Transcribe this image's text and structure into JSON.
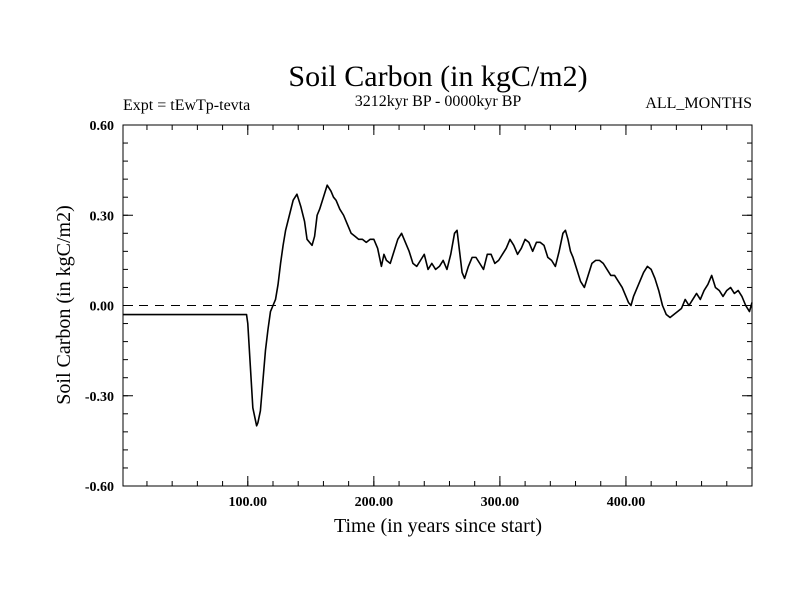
{
  "chart_data": {
    "type": "line",
    "title": "Soil Carbon (in kgC/m2)",
    "subtitle_left": "Expt = tEwTp-tevta",
    "subtitle_center": "3212kyr BP - 0000kyr BP",
    "subtitle_right": "ALL_MONTHS",
    "xlabel": "Time (in years since start)",
    "ylabel": "Soil Carbon (in kgC/m2)",
    "xlim": [
      1,
      500
    ],
    "ylim": [
      -0.6,
      0.6
    ],
    "x_ticks": [
      {
        "value": 100,
        "label": "100.00"
      },
      {
        "value": 200,
        "label": "200.00"
      },
      {
        "value": 300,
        "label": "300.00"
      },
      {
        "value": 400,
        "label": "400.00"
      }
    ],
    "y_ticks": [
      {
        "value": 0.6,
        "label": "0.60"
      },
      {
        "value": 0.3,
        "label": "0.30"
      },
      {
        "value": 0.0,
        "label": "0.00"
      },
      {
        "value": -0.3,
        "label": "-0.30"
      },
      {
        "value": -0.6,
        "label": "-0.60"
      }
    ],
    "reference_line": {
      "value": 0.0,
      "style": "dashed"
    },
    "series": [
      {
        "name": "Soil Carbon",
        "x": [
          1,
          99,
          100,
          102,
          104,
          106,
          107,
          108,
          110,
          112,
          114,
          116,
          118,
          120,
          122,
          124,
          126,
          128,
          130,
          133,
          136,
          139,
          142,
          145,
          147,
          149,
          151,
          153,
          155,
          157,
          160,
          163,
          166,
          168,
          170,
          173,
          176,
          179,
          182,
          185,
          188,
          191,
          194,
          197,
          200,
          203,
          206,
          208,
          210,
          213,
          216,
          219,
          222,
          225,
          228,
          231,
          234,
          237,
          240,
          243,
          246,
          249,
          252,
          255,
          258,
          261,
          264,
          266,
          268,
          270,
          272,
          275,
          278,
          281,
          284,
          287,
          290,
          293,
          296,
          299,
          302,
          305,
          308,
          311,
          314,
          317,
          320,
          323,
          326,
          329,
          332,
          335,
          338,
          341,
          344,
          347,
          350,
          352,
          354,
          356,
          358,
          361,
          364,
          367,
          370,
          373,
          376,
          379,
          382,
          385,
          388,
          391,
          394,
          397,
          400,
          402,
          404,
          406,
          408,
          411,
          414,
          417,
          420,
          423,
          426,
          429,
          432,
          435,
          438,
          441,
          444,
          447,
          450,
          453,
          456,
          459,
          462,
          465,
          468,
          471,
          474,
          477,
          480,
          483,
          486,
          489,
          492,
          495,
          498,
          500
        ],
        "values": [
          -0.03,
          -0.03,
          -0.06,
          -0.2,
          -0.34,
          -0.38,
          -0.4,
          -0.39,
          -0.35,
          -0.25,
          -0.15,
          -0.08,
          -0.02,
          0.0,
          0.02,
          0.07,
          0.14,
          0.2,
          0.25,
          0.3,
          0.35,
          0.37,
          0.33,
          0.28,
          0.22,
          0.21,
          0.2,
          0.23,
          0.3,
          0.32,
          0.36,
          0.4,
          0.38,
          0.36,
          0.35,
          0.32,
          0.3,
          0.27,
          0.24,
          0.23,
          0.22,
          0.22,
          0.21,
          0.22,
          0.22,
          0.19,
          0.13,
          0.17,
          0.15,
          0.14,
          0.18,
          0.22,
          0.24,
          0.21,
          0.18,
          0.14,
          0.13,
          0.15,
          0.17,
          0.12,
          0.14,
          0.12,
          0.13,
          0.15,
          0.12,
          0.17,
          0.24,
          0.25,
          0.18,
          0.11,
          0.09,
          0.13,
          0.16,
          0.16,
          0.14,
          0.12,
          0.17,
          0.17,
          0.14,
          0.15,
          0.17,
          0.19,
          0.22,
          0.2,
          0.17,
          0.19,
          0.22,
          0.21,
          0.18,
          0.21,
          0.21,
          0.2,
          0.16,
          0.15,
          0.13,
          0.18,
          0.24,
          0.25,
          0.22,
          0.18,
          0.16,
          0.12,
          0.08,
          0.06,
          0.1,
          0.14,
          0.15,
          0.15,
          0.14,
          0.12,
          0.1,
          0.1,
          0.08,
          0.06,
          0.03,
          0.01,
          0.0,
          0.03,
          0.05,
          0.08,
          0.11,
          0.13,
          0.12,
          0.09,
          0.05,
          0.0,
          -0.03,
          -0.04,
          -0.03,
          -0.02,
          -0.01,
          0.02,
          0.0,
          0.02,
          0.04,
          0.02,
          0.05,
          0.07,
          0.1,
          0.06,
          0.05,
          0.03,
          0.05,
          0.06,
          0.04,
          0.05,
          0.03,
          0.0,
          -0.02,
          0.01
        ]
      }
    ]
  }
}
